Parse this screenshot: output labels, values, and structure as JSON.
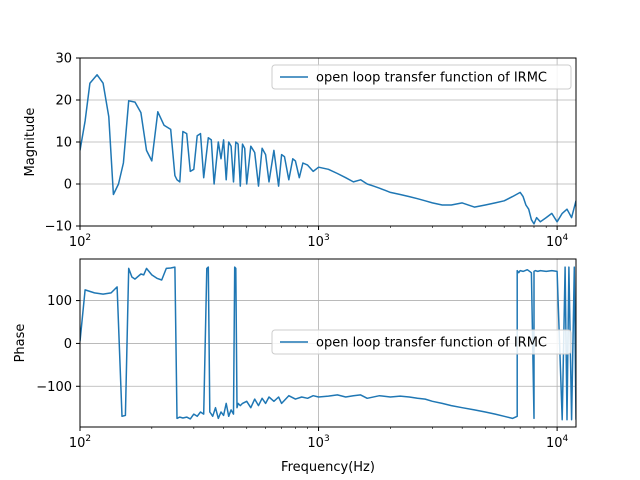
{
  "chart_data": [
    {
      "type": "line",
      "xscale": "log",
      "ylabel": "Magnitude",
      "xlim": [
        100,
        12000
      ],
      "ylim": [
        -10,
        30
      ],
      "yticks": [
        -10,
        0,
        10,
        20,
        30
      ],
      "ytick_labels": [
        "−10",
        "0",
        "10",
        "20",
        "30"
      ],
      "xticks": [
        100,
        1000,
        10000
      ],
      "xtick_labels": [
        [
          "10",
          "2"
        ],
        [
          "10",
          "3"
        ],
        [
          "10",
          "4"
        ]
      ],
      "grid": true,
      "legend_position": "upper-right",
      "series": [
        {
          "name": "open loop transfer function of IRMC",
          "color": "#1f77b4",
          "x": [
            100,
            105,
            110,
            118,
            125,
            132,
            138,
            145,
            152,
            160,
            170,
            180,
            190,
            200,
            212,
            225,
            240,
            250,
            255,
            262,
            270,
            280,
            290,
            300,
            310,
            320,
            330,
            345,
            355,
            365,
            380,
            390,
            400,
            410,
            420,
            430,
            440,
            450,
            460,
            470,
            480,
            490,
            500,
            520,
            540,
            560,
            580,
            600,
            620,
            650,
            680,
            700,
            720,
            750,
            780,
            800,
            830,
            860,
            900,
            950,
            1000,
            1100,
            1200,
            1300,
            1400,
            1500,
            1600,
            1700,
            1800,
            1900,
            2000,
            2200,
            2400,
            2600,
            2800,
            3000,
            3300,
            3600,
            4000,
            4500,
            5000,
            5500,
            6000,
            6500,
            7000,
            7200,
            7400,
            7600,
            7800,
            8000,
            8200,
            8500,
            9000,
            9500,
            10000,
            10500,
            11000,
            11500,
            12000
          ],
          "y": [
            8,
            15,
            24,
            26,
            24,
            16,
            -2.5,
            0,
            5,
            19.8,
            19.5,
            17,
            8,
            5.5,
            17.2,
            14,
            13,
            2,
            1,
            0.5,
            12.5,
            12,
            3,
            3.5,
            11.5,
            12,
            1.5,
            11,
            10.5,
            0,
            10,
            6,
            10.5,
            1,
            10,
            9,
            0.5,
            10,
            9.5,
            -0.5,
            9.5,
            8.5,
            0,
            9,
            7.5,
            -0.5,
            8.5,
            7,
            0.5,
            8,
            -0.5,
            7,
            6.5,
            1,
            6,
            5.5,
            1.5,
            5,
            4.5,
            3,
            4,
            3.5,
            2.5,
            1.5,
            0.5,
            1,
            0,
            -0.5,
            -1,
            -1.5,
            -2,
            -2.5,
            -3,
            -3.5,
            -4,
            -4.5,
            -5,
            -5,
            -4.5,
            -5.5,
            -5,
            -4.5,
            -4,
            -3,
            -2,
            -3,
            -5,
            -6,
            -8.5,
            -9.5,
            -8,
            -9,
            -8,
            -7,
            -9,
            -7,
            -6,
            -8,
            -4
          ]
        }
      ]
    },
    {
      "type": "line",
      "xscale": "log",
      "xlabel": "Frequency(Hz)",
      "ylabel": "Phase",
      "xlim": [
        100,
        12000
      ],
      "ylim": [
        -195,
        197
      ],
      "yticks": [
        -100,
        0,
        100
      ],
      "ytick_labels": [
        "−100",
        "0",
        "100"
      ],
      "xticks": [
        100,
        1000,
        10000
      ],
      "xtick_labels": [
        [
          "10",
          "2"
        ],
        [
          "10",
          "3"
        ],
        [
          "10",
          "4"
        ]
      ],
      "grid": true,
      "legend_position": "center-right",
      "series": [
        {
          "name": "open loop transfer function of IRMC",
          "color": "#1f77b4",
          "x": [
            100,
            105,
            115,
            125,
            135,
            143,
            150,
            155,
            160,
            165,
            170,
            180,
            185,
            190,
            200,
            210,
            220,
            230,
            240,
            250,
            255,
            262,
            270,
            280,
            290,
            300,
            310,
            320,
            330,
            340,
            345,
            350,
            355,
            360,
            370,
            380,
            390,
            400,
            410,
            420,
            430,
            440,
            445,
            450,
            455,
            460,
            470,
            480,
            500,
            520,
            540,
            560,
            580,
            600,
            620,
            650,
            680,
            700,
            750,
            800,
            850,
            900,
            950,
            1000,
            1100,
            1200,
            1300,
            1400,
            1500,
            1600,
            1800,
            2000,
            2200,
            2400,
            2600,
            2800,
            3000,
            3300,
            3600,
            4000,
            4500,
            5000,
            5500,
            6000,
            6500,
            6800,
            6800,
            6900,
            7000,
            7200,
            7500,
            7800,
            8000,
            8000,
            8100,
            8300,
            8500,
            9000,
            9500,
            10000,
            10500,
            10800,
            11000,
            11200,
            11500,
            11800,
            12000
          ],
          "y": [
            5,
            125,
            118,
            115,
            118,
            132,
            -170,
            -168,
            175,
            155,
            150,
            162,
            160,
            175,
            160,
            152,
            148,
            175,
            176,
            178,
            -175,
            -172,
            -174,
            -172,
            -176,
            -165,
            -170,
            -160,
            -165,
            175,
            178,
            -160,
            -165,
            -170,
            -150,
            -175,
            -160,
            -168,
            -140,
            -170,
            -155,
            -165,
            178,
            175,
            -150,
            -140,
            -145,
            -140,
            -135,
            -150,
            -130,
            -145,
            -128,
            -140,
            -125,
            -135,
            -125,
            -140,
            -122,
            -130,
            -125,
            -128,
            -122,
            -125,
            -123,
            -120,
            -125,
            -122,
            -120,
            -128,
            -122,
            -125,
            -123,
            -125,
            -128,
            -130,
            -135,
            -140,
            -145,
            -150,
            -155,
            -160,
            -165,
            -170,
            -175,
            -170,
            170,
            165,
            170,
            168,
            172,
            165,
            -175,
            168,
            170,
            168,
            170,
            168,
            170,
            168,
            -178,
            178,
            -178,
            178,
            -178,
            178,
            -178
          ]
        }
      ]
    }
  ]
}
